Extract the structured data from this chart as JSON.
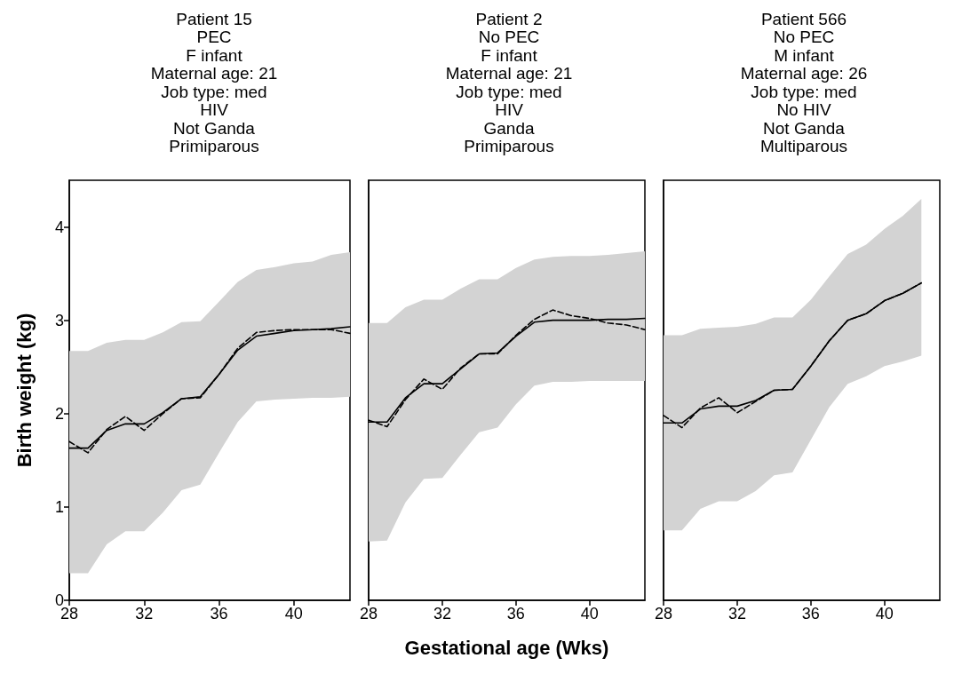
{
  "chart_data": [
    {
      "type": "line",
      "title": "Patient 15\nPEC\nF infant\nMaternal age: 21\nJob type: med\nHIV\nNot Ganda\nPrimiparous",
      "ylabel": "Birth weight (kg)",
      "x": [
        28,
        29,
        30,
        31,
        32,
        33,
        34,
        35,
        36,
        37,
        38,
        39,
        40,
        41,
        42,
        43
      ],
      "xlim": [
        28,
        43
      ],
      "xticks": [
        28,
        32,
        36,
        40
      ],
      "ylim": [
        0,
        4.5
      ],
      "yticks": [
        0,
        1,
        2,
        3,
        4
      ],
      "grid": false,
      "marker": "none",
      "series": [
        {
          "color": "#000000",
          "line_style": "solid",
          "values": [
            1.63,
            1.63,
            1.82,
            1.89,
            1.89,
            2.01,
            2.16,
            2.18,
            2.42,
            2.68,
            2.83,
            2.86,
            2.89,
            2.9,
            2.91,
            2.93
          ],
          "lower": [
            0.29,
            0.29,
            0.6,
            0.74,
            0.74,
            0.94,
            1.18,
            1.24,
            1.58,
            1.91,
            2.13,
            2.15,
            2.16,
            2.17,
            2.17,
            2.18
          ],
          "upper": [
            2.67,
            2.67,
            2.76,
            2.79,
            2.79,
            2.87,
            2.98,
            2.99,
            3.2,
            3.41,
            3.54,
            3.57,
            3.61,
            3.63,
            3.7,
            3.73
          ]
        },
        {
          "color": "#000000",
          "line_style": "dashed",
          "values": [
            1.7,
            1.58,
            1.83,
            1.97,
            1.82,
            2.0,
            2.16,
            2.17,
            2.42,
            2.7,
            2.87,
            2.89,
            2.9,
            2.9,
            2.9,
            2.86
          ]
        }
      ]
    },
    {
      "type": "line",
      "title": "Patient 2\nNo PEC\nF infant\nMaternal age: 21\nJob type: med\nHIV\nGanda\nPrimiparous",
      "xlabel": "Gestational age (Wks)",
      "x": [
        28,
        29,
        30,
        31,
        32,
        33,
        34,
        35,
        36,
        37,
        38,
        39,
        40,
        41,
        42,
        43
      ],
      "xlim": [
        28,
        43
      ],
      "xticks": [
        28,
        32,
        36,
        40
      ],
      "ylim": [
        0,
        4.5
      ],
      "yticks": [
        0,
        1,
        2,
        3,
        4
      ],
      "tick_labels": "x",
      "grid": false,
      "marker": "none",
      "series": [
        {
          "color": "#000000",
          "line_style": "solid",
          "values": [
            1.91,
            1.91,
            2.17,
            2.32,
            2.32,
            2.48,
            2.64,
            2.65,
            2.83,
            2.98,
            3.0,
            3.0,
            3.0,
            3.01,
            3.01,
            3.02
          ],
          "lower": [
            0.63,
            0.64,
            1.05,
            1.3,
            1.31,
            1.56,
            1.8,
            1.85,
            2.1,
            2.3,
            2.34,
            2.34,
            2.35,
            2.35,
            2.35,
            2.35
          ],
          "upper": [
            2.97,
            2.97,
            3.14,
            3.22,
            3.22,
            3.34,
            3.44,
            3.44,
            3.56,
            3.65,
            3.68,
            3.69,
            3.69,
            3.7,
            3.72,
            3.74
          ]
        },
        {
          "color": "#000000",
          "line_style": "dashed",
          "values": [
            1.93,
            1.86,
            2.15,
            2.37,
            2.26,
            2.49,
            2.64,
            2.64,
            2.84,
            3.01,
            3.11,
            3.05,
            3.02,
            2.97,
            2.95,
            2.9
          ]
        }
      ]
    },
    {
      "type": "line",
      "title": "Patient 566\nNo PEC\nM infant\nMaternal age: 26\nJob type: med\nNo HIV\nNot Ganda\nMultiparous",
      "x": [
        28,
        29,
        30,
        31,
        32,
        33,
        34,
        35,
        36,
        37,
        38,
        39,
        40,
        41,
        42
      ],
      "xlim": [
        28,
        43
      ],
      "xticks": [
        28,
        32,
        36,
        40
      ],
      "ylim": [
        0,
        4.5
      ],
      "yticks": [
        0,
        1,
        2,
        3,
        4
      ],
      "tick_labels": "x",
      "grid": false,
      "marker": "none",
      "series": [
        {
          "color": "#000000",
          "line_style": "solid",
          "values": [
            1.9,
            1.9,
            2.05,
            2.08,
            2.08,
            2.14,
            2.25,
            2.26,
            2.51,
            2.78,
            3.0,
            3.07,
            3.21,
            3.29,
            3.4
          ],
          "lower": [
            0.75,
            0.75,
            0.98,
            1.06,
            1.06,
            1.17,
            1.34,
            1.37,
            1.72,
            2.07,
            2.32,
            2.4,
            2.51,
            2.56,
            2.62
          ],
          "upper": [
            2.84,
            2.84,
            2.91,
            2.92,
            2.93,
            2.96,
            3.03,
            3.03,
            3.22,
            3.47,
            3.71,
            3.81,
            3.98,
            4.12,
            4.3
          ]
        },
        {
          "color": "#000000",
          "line_style": "dashed",
          "values": [
            1.98,
            1.85,
            2.06,
            2.17,
            2.01,
            2.13,
            2.25,
            2.26,
            2.51,
            2.78,
            3.0,
            3.07,
            3.21,
            3.29,
            3.4
          ]
        }
      ]
    }
  ]
}
